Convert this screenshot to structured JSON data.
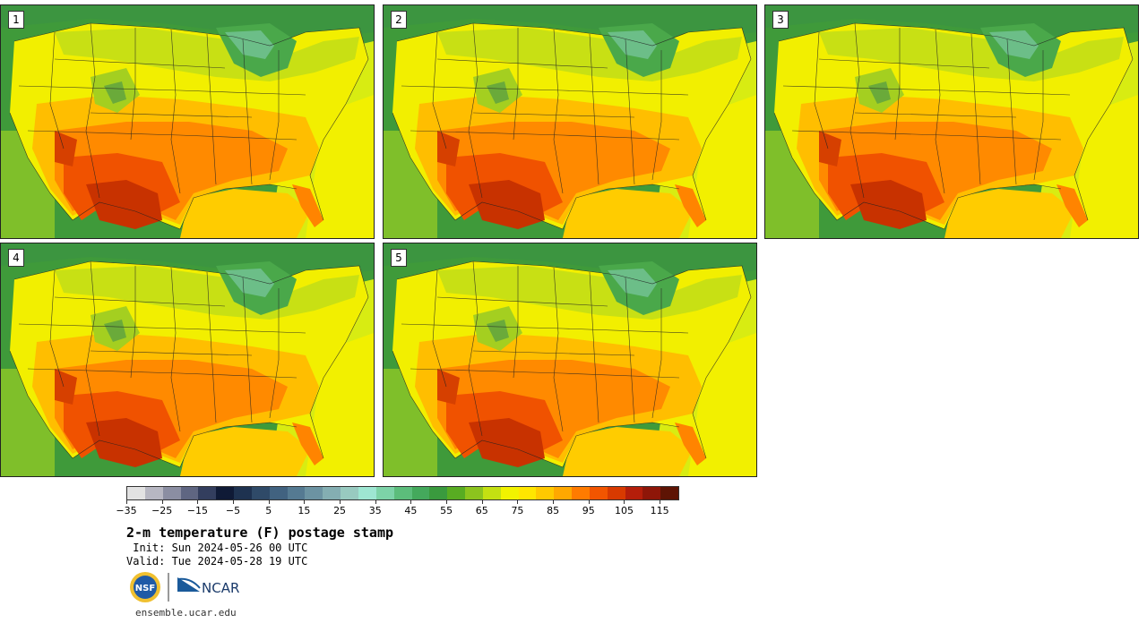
{
  "panels": [
    {
      "label": "1"
    },
    {
      "label": "2"
    },
    {
      "label": "3"
    },
    {
      "label": "4"
    },
    {
      "label": "5"
    }
  ],
  "colorbar": {
    "colors": [
      "#e2e2e2",
      "#b7b7c2",
      "#8b8ea2",
      "#5f6682",
      "#333e5e",
      "#0f1a36",
      "#1e3250",
      "#2f4a68",
      "#416280",
      "#557a92",
      "#6c93a2",
      "#84aeb2",
      "#98cac0",
      "#9ee6d2",
      "#7dd3a8",
      "#5cbd7b",
      "#44a95c",
      "#3a9a3e",
      "#58ac22",
      "#8cc41e",
      "#c4e012",
      "#f2f200",
      "#ffe600",
      "#ffc900",
      "#ffa800",
      "#ff7b00",
      "#f25500",
      "#d83a00",
      "#b41e0a",
      "#8e1608",
      "#5e1404"
    ],
    "tick_labels": [
      "-35",
      "-25",
      "-15",
      "-5",
      "5",
      "15",
      "25",
      "35",
      "45",
      "55",
      "65",
      "75",
      "85",
      "95",
      "105",
      "115"
    ]
  },
  "title": "2-m temperature (F) postage stamp",
  "init": " Init: Sun 2024-05-26 00 UTC",
  "valid": "Valid: Tue 2024-05-28 19 UTC",
  "logos": {
    "nsf": "NSF",
    "ncar": "NCAR"
  },
  "url": "ensemble.ucar.edu"
}
